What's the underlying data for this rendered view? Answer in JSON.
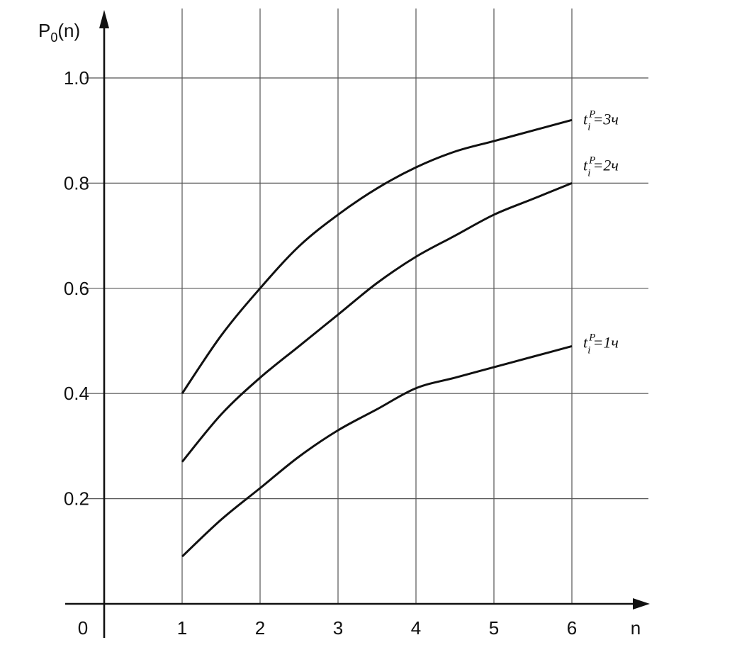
{
  "chart_data": {
    "type": "line",
    "title": "",
    "xlabel": "n",
    "ylabel": "P0(n)",
    "ylabel_parts": {
      "main": "P",
      "sub": "0",
      "rest": "(n)"
    },
    "origin_label": "0",
    "xlim": [
      0,
      6.5
    ],
    "ylim": [
      0,
      1.0
    ],
    "x_ticks": [
      1,
      2,
      3,
      4,
      5,
      6
    ],
    "x_tick_labels": [
      "1",
      "2",
      "3",
      "4",
      "5",
      "6"
    ],
    "y_ticks": [
      0.2,
      0.4,
      0.6,
      0.8,
      1.0
    ],
    "y_tick_labels": [
      "0.2",
      "0.4",
      "0.6",
      "0.8",
      "1.0"
    ],
    "grid": true,
    "series": [
      {
        "name": "t_i^P=3ч",
        "label_parts": {
          "base": "t",
          "sub": "i",
          "sup": "P",
          "rest": "=3ч"
        },
        "x": [
          1,
          1.5,
          2,
          2.5,
          3,
          3.5,
          4,
          4.5,
          5,
          5.5,
          6
        ],
        "y": [
          0.4,
          0.51,
          0.6,
          0.68,
          0.74,
          0.79,
          0.83,
          0.86,
          0.88,
          0.9,
          0.92
        ]
      },
      {
        "name": "t_i^P=2ч",
        "label_parts": {
          "base": "t",
          "sub": "i",
          "sup": "P",
          "rest": "=2ч"
        },
        "x": [
          1,
          1.5,
          2,
          2.5,
          3,
          3.5,
          4,
          4.5,
          5,
          5.5,
          6
        ],
        "y": [
          0.27,
          0.36,
          0.43,
          0.49,
          0.55,
          0.61,
          0.66,
          0.7,
          0.74,
          0.77,
          0.8
        ]
      },
      {
        "name": "t_i^P=1ч",
        "label_parts": {
          "base": "t",
          "sub": "i",
          "sup": "P",
          "rest": "=1ч"
        },
        "x": [
          1,
          1.5,
          2,
          2.5,
          3,
          3.5,
          4,
          4.5,
          5,
          5.5,
          6
        ],
        "y": [
          0.09,
          0.16,
          0.22,
          0.28,
          0.33,
          0.37,
          0.41,
          0.43,
          0.45,
          0.47,
          0.49
        ]
      }
    ]
  }
}
